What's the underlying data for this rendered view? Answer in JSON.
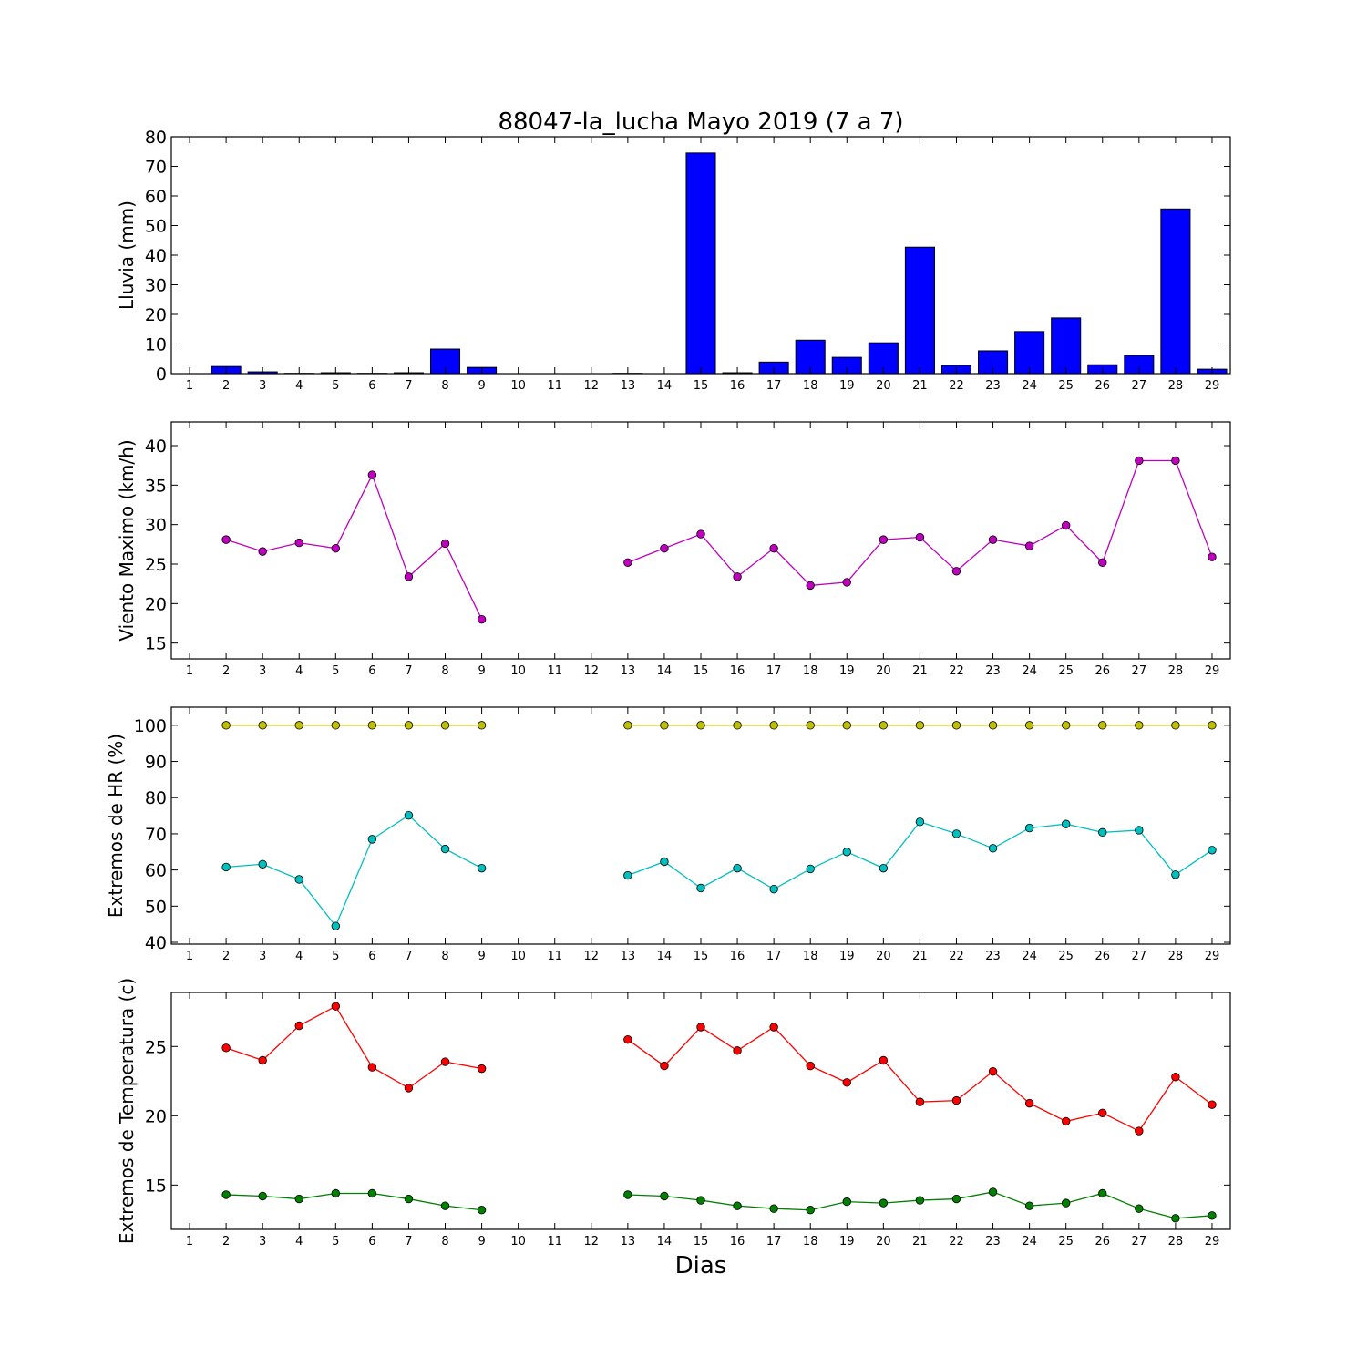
{
  "title": "88047-la_lucha Mayo 2019  (7 a 7)",
  "xlabel": "Dias",
  "x_ticks": [
    1,
    2,
    3,
    4,
    5,
    6,
    7,
    8,
    9,
    10,
    11,
    12,
    13,
    14,
    15,
    16,
    17,
    18,
    19,
    20,
    21,
    22,
    23,
    24,
    25,
    26,
    27,
    28,
    29
  ],
  "chart_data": [
    {
      "type": "bar",
      "ylabel": "Lluvia (mm)",
      "ylim": [
        0,
        80
      ],
      "yticks": [
        0,
        10,
        20,
        30,
        40,
        50,
        60,
        70,
        80
      ],
      "grid": false,
      "series": [
        {
          "color": "#0000ff",
          "x": [
            2,
            3,
            4,
            5,
            6,
            7,
            8,
            9,
            13,
            15,
            16,
            17,
            18,
            19,
            20,
            21,
            22,
            23,
            24,
            25,
            26,
            27,
            28,
            29
          ],
          "values": [
            2.4,
            0.6,
            0.1,
            0.3,
            0.1,
            0.3,
            8.3,
            2.1,
            0.1,
            74.5,
            0.3,
            3.9,
            11.3,
            5.5,
            10.4,
            42.7,
            2.8,
            7.7,
            14.2,
            18.8,
            3.0,
            6.1,
            55.6,
            1.5
          ]
        }
      ]
    },
    {
      "type": "line",
      "ylabel": "Viento Maximo (km/h)",
      "ylim": [
        13,
        43
      ],
      "yticks": [
        15,
        20,
        25,
        30,
        35,
        40
      ],
      "grid": false,
      "series": [
        {
          "color": "#bf00bf",
          "x": [
            2,
            3,
            4,
            5,
            6,
            7,
            8,
            9,
            10,
            11,
            12,
            13,
            14,
            15,
            16,
            17,
            18,
            19,
            20,
            21,
            22,
            23,
            24,
            25,
            26,
            27,
            28,
            29
          ],
          "values": [
            28.1,
            26.6,
            27.7,
            27.0,
            36.3,
            23.4,
            27.6,
            18.0,
            null,
            null,
            null,
            25.2,
            27.0,
            28.8,
            23.4,
            27.0,
            22.3,
            22.7,
            28.1,
            28.4,
            24.1,
            28.1,
            27.3,
            29.9,
            25.2,
            38.1,
            38.1,
            25.9
          ]
        }
      ]
    },
    {
      "type": "line",
      "ylabel": "Extremos de HR (%)",
      "ylim": [
        39.5,
        105
      ],
      "yticks": [
        40,
        50,
        60,
        70,
        80,
        90,
        100
      ],
      "grid": false,
      "series": [
        {
          "color": "#bfbf00",
          "x": [
            2,
            3,
            4,
            5,
            6,
            7,
            8,
            9,
            10,
            11,
            12,
            13,
            14,
            15,
            16,
            17,
            18,
            19,
            20,
            21,
            22,
            23,
            24,
            25,
            26,
            27,
            28,
            29
          ],
          "values": [
            100,
            100,
            100,
            100,
            100,
            100,
            100,
            100,
            null,
            null,
            null,
            100,
            100,
            100,
            100,
            100,
            100,
            100,
            100,
            100,
            100,
            100,
            100,
            100,
            100,
            100,
            100,
            100
          ]
        },
        {
          "color": "#00bfbf",
          "x": [
            2,
            3,
            4,
            5,
            6,
            7,
            8,
            9,
            10,
            11,
            12,
            13,
            14,
            15,
            16,
            17,
            18,
            19,
            20,
            21,
            22,
            23,
            24,
            25,
            26,
            27,
            28,
            29
          ],
          "values": [
            60.8,
            61.6,
            57.4,
            44.5,
            68.5,
            75.1,
            65.8,
            60.5,
            null,
            null,
            null,
            58.5,
            62.3,
            55.0,
            60.5,
            54.7,
            60.3,
            65.0,
            60.5,
            73.3,
            70.0,
            66.0,
            71.6,
            72.7,
            70.4,
            71.0,
            58.7,
            65.5
          ]
        }
      ]
    },
    {
      "type": "line",
      "ylabel": "Extremos de Temperatura (c)",
      "ylim": [
        11.8,
        28.9
      ],
      "yticks": [
        15,
        20,
        25
      ],
      "grid": false,
      "series": [
        {
          "color": "#ff0000",
          "x": [
            2,
            3,
            4,
            5,
            6,
            7,
            8,
            9,
            10,
            11,
            12,
            13,
            14,
            15,
            16,
            17,
            18,
            19,
            20,
            21,
            22,
            23,
            24,
            25,
            26,
            27,
            28,
            29
          ],
          "values": [
            24.9,
            24.0,
            26.5,
            27.9,
            23.5,
            22.0,
            23.9,
            23.4,
            null,
            null,
            null,
            25.5,
            23.6,
            26.4,
            24.7,
            26.4,
            23.6,
            22.4,
            24.0,
            21.0,
            21.1,
            23.2,
            20.9,
            19.6,
            20.2,
            18.9,
            22.8,
            20.8
          ]
        },
        {
          "color": "#007f00",
          "x": [
            2,
            3,
            4,
            5,
            6,
            7,
            8,
            9,
            10,
            11,
            12,
            13,
            14,
            15,
            16,
            17,
            18,
            19,
            20,
            21,
            22,
            23,
            24,
            25,
            26,
            27,
            28,
            29
          ],
          "values": [
            14.3,
            14.2,
            14.0,
            14.4,
            14.4,
            14.0,
            13.5,
            13.2,
            null,
            null,
            null,
            14.3,
            14.2,
            13.9,
            13.5,
            13.3,
            13.2,
            13.8,
            13.7,
            13.9,
            14.0,
            14.5,
            13.5,
            13.7,
            14.4,
            13.3,
            12.6,
            12.8
          ]
        }
      ]
    }
  ]
}
